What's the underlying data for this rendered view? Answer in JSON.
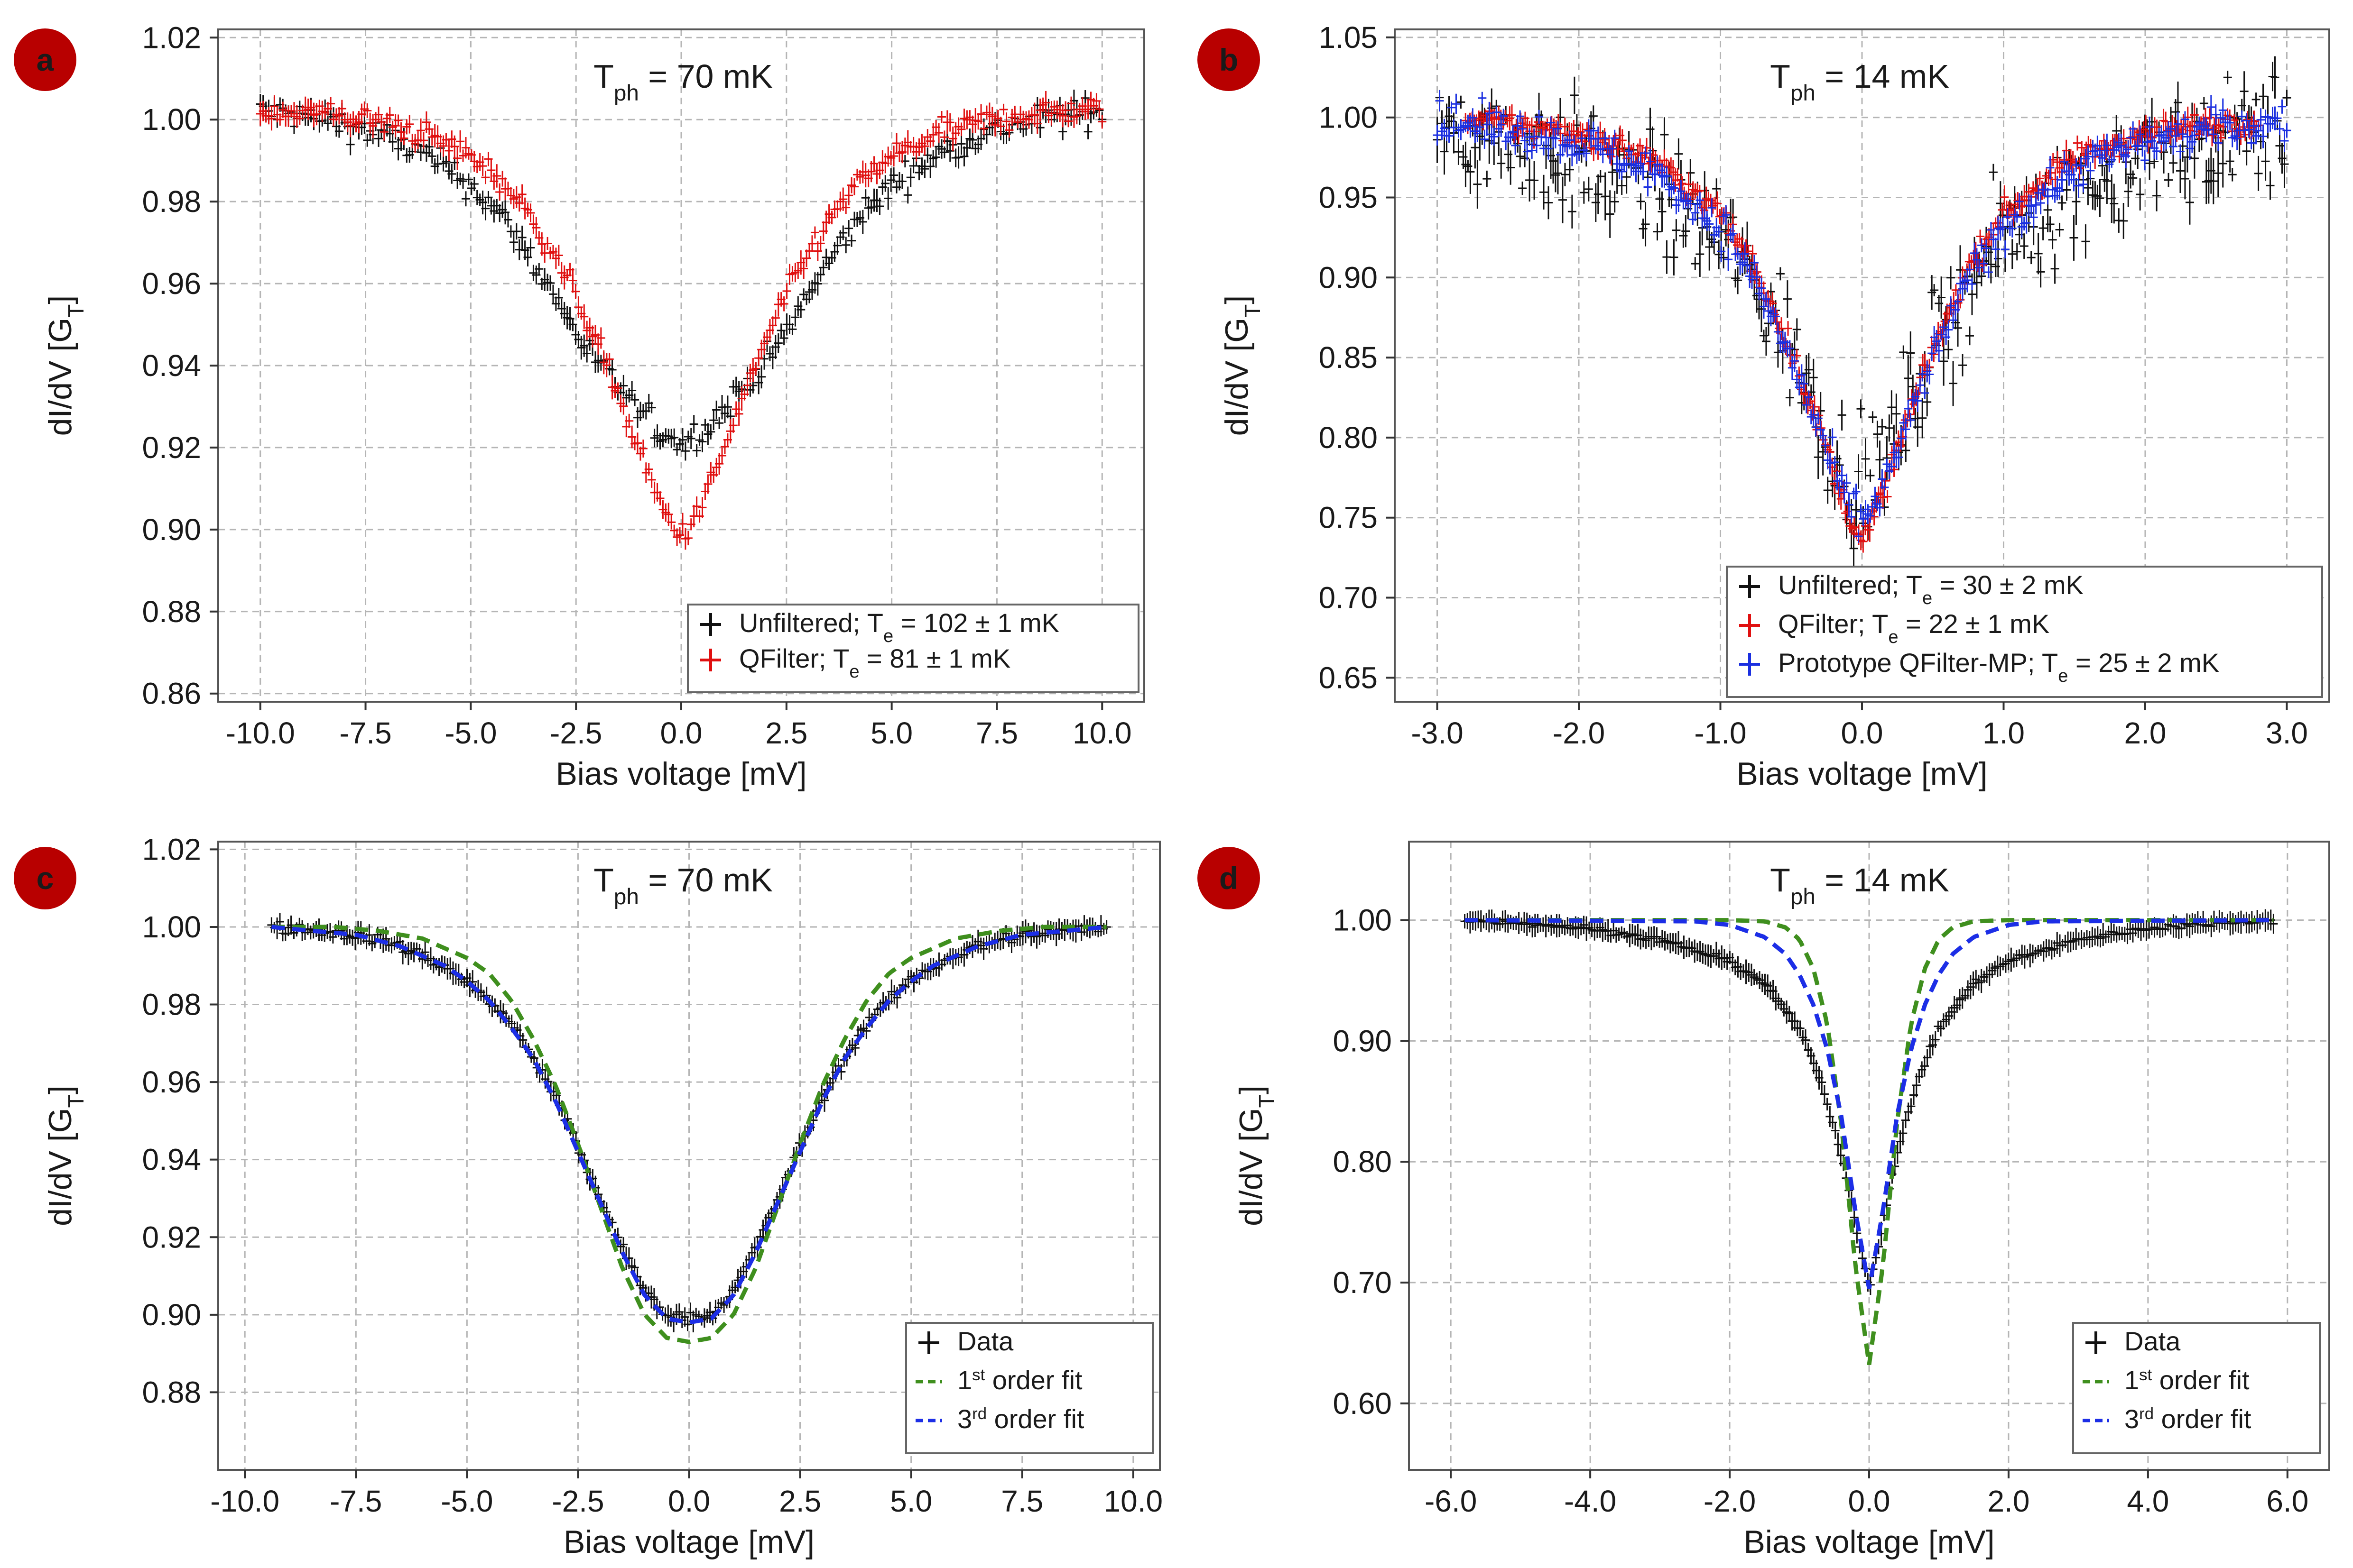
{
  "colors": {
    "unfiltered": "#111111",
    "qfilter": "#e01010",
    "qfilter_mp": "#1a2fe0",
    "fit1": "#3f8f1e",
    "fit3": "#1c2ee6",
    "badge": "#b80000",
    "grid": "#b5b5b5"
  },
  "chart_data": [
    {
      "id": "a",
      "type": "scatter",
      "panel_letter": "a",
      "title_main": "T",
      "title_sub": "ph",
      "title_rest": " = 70 mK",
      "xlabel": "Bias voltage [mV]",
      "ylabel_main": "dI/dV [G",
      "ylabel_sub": "T",
      "ylabel_end": "]",
      "xlim": [
        -11.0,
        11.0
      ],
      "ylim": [
        0.858,
        1.022
      ],
      "xticks": [
        -10.0,
        -7.5,
        -5.0,
        -2.5,
        0.0,
        2.5,
        5.0,
        7.5,
        10.0
      ],
      "xtick_labels": [
        "-10.0",
        "-7.5",
        "-5.0",
        "-2.5",
        "0.0",
        "2.5",
        "5.0",
        "7.5",
        "10.0"
      ],
      "yticks": [
        0.86,
        0.88,
        0.9,
        0.92,
        0.94,
        0.96,
        0.98,
        1.0,
        1.02
      ],
      "ytick_labels": [
        "0.86",
        "0.88",
        "0.90",
        "0.92",
        "0.94",
        "0.96",
        "0.98",
        "1.00",
        "1.02"
      ],
      "grid": true,
      "legend_position": "bottom-right",
      "series": [
        {
          "name": "Unfiltered",
          "legend_main": "Unfiltered; T",
          "legend_sub": "e",
          "legend_rest": " = 102 ± 1 mK",
          "style": "cross",
          "color": "#111111",
          "x": [
            -10.0,
            -9.0,
            -8.0,
            -7.0,
            -6.0,
            -5.0,
            -4.5,
            -4.0,
            -3.5,
            -3.0,
            -2.5,
            -2.0,
            -1.5,
            -1.0,
            -0.5,
            0.0,
            0.5,
            1.0,
            1.5,
            2.0,
            2.5,
            3.0,
            3.5,
            4.0,
            4.5,
            5.0,
            6.0,
            7.0,
            8.0,
            9.0,
            10.0
          ],
          "y": [
            1.002,
            1.001,
            0.999,
            0.996,
            0.991,
            0.984,
            0.979,
            0.973,
            0.965,
            0.957,
            0.948,
            0.941,
            0.935,
            0.929,
            0.924,
            0.921,
            0.924,
            0.929,
            0.935,
            0.941,
            0.948,
            0.957,
            0.965,
            0.973,
            0.979,
            0.984,
            0.991,
            0.996,
            0.999,
            1.001,
            1.002
          ],
          "noise": 0.0035
        },
        {
          "name": "QFilter",
          "legend_main": "QFilter; T",
          "legend_sub": "e",
          "legend_rest": " = 81 ± 1 mK",
          "style": "cross",
          "color": "#e01010",
          "x": [
            -10.0,
            -9.0,
            -8.0,
            -7.0,
            -6.0,
            -5.0,
            -4.5,
            -4.0,
            -3.5,
            -3.0,
            -2.5,
            -2.0,
            -1.5,
            -1.0,
            -0.5,
            0.0,
            0.5,
            1.0,
            1.5,
            2.0,
            2.5,
            3.0,
            3.5,
            4.0,
            4.5,
            5.0,
            6.0,
            7.0,
            8.0,
            9.0,
            10.0
          ],
          "y": [
            1.002,
            1.002,
            1.001,
            0.999,
            0.996,
            0.991,
            0.987,
            0.982,
            0.975,
            0.967,
            0.957,
            0.946,
            0.933,
            0.919,
            0.906,
            0.898,
            0.906,
            0.919,
            0.933,
            0.946,
            0.957,
            0.967,
            0.975,
            0.982,
            0.987,
            0.991,
            0.996,
            0.999,
            1.001,
            1.002,
            1.002
          ],
          "noise": 0.003
        }
      ]
    },
    {
      "id": "b",
      "type": "scatter",
      "panel_letter": "b",
      "title_main": "T",
      "title_sub": "ph",
      "title_rest": " = 14 mK",
      "xlabel": "Bias voltage [mV]",
      "ylabel_main": "dI/dV [G",
      "ylabel_sub": "T",
      "ylabel_end": "]",
      "xlim": [
        -3.3,
        3.3
      ],
      "ylim": [
        0.635,
        1.055
      ],
      "xticks": [
        -3.0,
        -2.0,
        -1.0,
        0.0,
        1.0,
        2.0,
        3.0
      ],
      "xtick_labels": [
        "-3.0",
        "-2.0",
        "-1.0",
        "0.0",
        "1.0",
        "2.0",
        "3.0"
      ],
      "yticks": [
        0.65,
        0.7,
        0.75,
        0.8,
        0.85,
        0.9,
        0.95,
        1.0,
        1.05
      ],
      "ytick_labels": [
        "0.65",
        "0.70",
        "0.75",
        "0.80",
        "0.85",
        "0.90",
        "0.95",
        "1.00",
        "1.05"
      ],
      "grid": true,
      "legend_position": "bottom-right",
      "series": [
        {
          "name": "Unfiltered",
          "legend_main": "Unfiltered; T",
          "legend_sub": "e",
          "legend_rest": " = 30 ± 2 mK",
          "style": "cross",
          "color": "#111111",
          "x": [
            -3.0,
            -2.5,
            -2.0,
            -1.5,
            -1.0,
            -0.75,
            -0.5,
            -0.3,
            -0.15,
            0.0,
            0.15,
            0.3,
            0.5,
            0.75,
            1.0,
            1.5,
            2.0,
            2.5,
            3.0
          ],
          "y": [
            0.995,
            0.985,
            0.972,
            0.955,
            0.925,
            0.895,
            0.855,
            0.815,
            0.785,
            0.765,
            0.785,
            0.815,
            0.855,
            0.895,
            0.925,
            0.955,
            0.972,
            0.985,
            0.995
          ],
          "noise": 0.035
        },
        {
          "name": "QFilter",
          "legend_main": "QFilter; T",
          "legend_sub": "e",
          "legend_rest": " = 22 ± 1 mK",
          "style": "cross",
          "color": "#e01010",
          "x": [
            -2.8,
            -2.5,
            -2.0,
            -1.5,
            -1.0,
            -0.75,
            -0.5,
            -0.3,
            -0.15,
            0.0,
            0.15,
            0.3,
            0.5,
            0.75,
            1.0,
            1.5,
            2.0,
            2.5,
            2.8
          ],
          "y": [
            0.998,
            0.996,
            0.99,
            0.975,
            0.94,
            0.905,
            0.855,
            0.805,
            0.765,
            0.735,
            0.765,
            0.805,
            0.855,
            0.905,
            0.94,
            0.975,
            0.99,
            0.996,
            0.998
          ],
          "noise": 0.008
        },
        {
          "name": "Prototype QFilter-MP",
          "legend_main": "Prototype QFilter-MP; T",
          "legend_sub": "e",
          "legend_rest": " = 25 ± 2 mK",
          "style": "cross",
          "color": "#1a2fe0",
          "x": [
            -3.0,
            -2.5,
            -2.0,
            -1.5,
            -1.0,
            -0.75,
            -0.5,
            -0.3,
            -0.15,
            0.0,
            0.15,
            0.3,
            0.5,
            0.75,
            1.0,
            1.5,
            2.0,
            2.5,
            3.0
          ],
          "y": [
            0.997,
            0.993,
            0.985,
            0.968,
            0.932,
            0.898,
            0.85,
            0.803,
            0.768,
            0.745,
            0.768,
            0.803,
            0.85,
            0.898,
            0.932,
            0.968,
            0.985,
            0.993,
            0.997
          ],
          "noise": 0.012
        }
      ]
    },
    {
      "id": "c",
      "type": "scatter",
      "panel_letter": "c",
      "title_main": "T",
      "title_sub": "ph",
      "title_rest": " = 70 mK",
      "xlabel": "Bias voltage [mV]",
      "ylabel_main": "dI/dV [G",
      "ylabel_sub": "T",
      "ylabel_end": "]",
      "xlim": [
        -10.6,
        10.6
      ],
      "ylim": [
        0.86,
        1.022
      ],
      "xticks": [
        -10.0,
        -7.5,
        -5.0,
        -2.5,
        0.0,
        2.5,
        5.0,
        7.5,
        10.0
      ],
      "xtick_labels": [
        "-10.0",
        "-7.5",
        "-5.0",
        "-2.5",
        "0.0",
        "2.5",
        "5.0",
        "7.5",
        "10.0"
      ],
      "yticks": [
        0.88,
        0.9,
        0.92,
        0.94,
        0.96,
        0.98,
        1.0,
        1.02
      ],
      "ytick_labels": [
        "0.88",
        "0.90",
        "0.92",
        "0.94",
        "0.96",
        "0.98",
        "1.00",
        "1.02"
      ],
      "grid": true,
      "legend_position": "bottom-right",
      "series": [
        {
          "name": "Data",
          "legend_main": "Data",
          "style": "cross",
          "color": "#111111",
          "x": [
            -9.4,
            -8.5,
            -7.5,
            -6.5,
            -5.5,
            -5.0,
            -4.5,
            -4.0,
            -3.5,
            -3.0,
            -2.5,
            -2.0,
            -1.5,
            -1.0,
            -0.5,
            0.0,
            0.5,
            1.0,
            1.5,
            2.0,
            2.5,
            3.0,
            3.5,
            4.0,
            4.5,
            5.0,
            5.5,
            6.5,
            7.5,
            8.5,
            9.4
          ],
          "y": [
            1.0,
            0.999,
            0.998,
            0.995,
            0.99,
            0.986,
            0.981,
            0.975,
            0.966,
            0.956,
            0.943,
            0.93,
            0.917,
            0.906,
            0.9,
            0.899,
            0.9,
            0.906,
            0.917,
            0.93,
            0.943,
            0.956,
            0.966,
            0.975,
            0.981,
            0.986,
            0.99,
            0.995,
            0.998,
            0.999,
            1.0
          ],
          "noise": 0.0015
        },
        {
          "name": "1st order fit",
          "legend_main": "1",
          "legend_sup": "st",
          "legend_rest": " order fit",
          "style": "dashed",
          "color": "#3f8f1e",
          "x": [
            -9.4,
            -8.0,
            -7.0,
            -6.0,
            -5.0,
            -4.5,
            -4.0,
            -3.5,
            -3.0,
            -2.5,
            -2.0,
            -1.5,
            -1.0,
            -0.5,
            0.0,
            0.5,
            1.0,
            1.5,
            2.0,
            2.5,
            3.0,
            3.5,
            4.0,
            4.5,
            5.0,
            6.0,
            7.0,
            8.0,
            9.4
          ],
          "y": [
            1.0,
            1.0,
            0.999,
            0.997,
            0.992,
            0.988,
            0.981,
            0.971,
            0.959,
            0.944,
            0.928,
            0.912,
            0.9,
            0.894,
            0.893,
            0.894,
            0.9,
            0.912,
            0.928,
            0.944,
            0.959,
            0.971,
            0.981,
            0.988,
            0.992,
            0.997,
            0.999,
            1.0,
            1.0
          ]
        },
        {
          "name": "3rd order fit",
          "legend_main": "3",
          "legend_sup": "rd",
          "legend_rest": " order fit",
          "style": "dashed",
          "color": "#1c2ee6",
          "x": [
            -9.4,
            -8.5,
            -7.5,
            -6.5,
            -5.5,
            -5.0,
            -4.5,
            -4.0,
            -3.5,
            -3.0,
            -2.5,
            -2.0,
            -1.5,
            -1.0,
            -0.5,
            0.0,
            0.5,
            1.0,
            1.5,
            2.0,
            2.5,
            3.0,
            3.5,
            4.0,
            4.5,
            5.0,
            5.5,
            6.5,
            7.5,
            8.5,
            9.4
          ],
          "y": [
            1.0,
            0.999,
            0.998,
            0.995,
            0.99,
            0.986,
            0.981,
            0.974,
            0.966,
            0.955,
            0.942,
            0.929,
            0.916,
            0.905,
            0.899,
            0.898,
            0.899,
            0.905,
            0.916,
            0.929,
            0.942,
            0.955,
            0.966,
            0.974,
            0.981,
            0.986,
            0.99,
            0.995,
            0.998,
            0.999,
            1.0
          ]
        }
      ]
    },
    {
      "id": "d",
      "type": "scatter",
      "panel_letter": "d",
      "title_main": "T",
      "title_sub": "ph",
      "title_rest": " = 14 mK",
      "xlabel": "Bias voltage [mV]",
      "ylabel_main": "dI/dV [G",
      "ylabel_sub": "T",
      "ylabel_end": "]",
      "xlim": [
        -6.6,
        6.6
      ],
      "ylim": [
        0.545,
        1.065
      ],
      "xticks": [
        -6.0,
        -4.0,
        -2.0,
        0.0,
        2.0,
        4.0,
        6.0
      ],
      "xtick_labels": [
        "-6.0",
        "-4.0",
        "-2.0",
        "0.0",
        "2.0",
        "4.0",
        "6.0"
      ],
      "yticks": [
        0.6,
        0.7,
        0.8,
        0.9,
        1.0
      ],
      "ytick_labels": [
        "0.60",
        "0.70",
        "0.80",
        "0.90",
        "1.00"
      ],
      "grid": true,
      "legend_position": "bottom-right",
      "series": [
        {
          "name": "Data",
          "legend_main": "Data",
          "style": "cross",
          "color": "#111111",
          "x": [
            -5.8,
            -5.0,
            -4.0,
            -3.0,
            -2.0,
            -1.5,
            -1.0,
            -0.7,
            -0.5,
            -0.3,
            -0.15,
            0.0,
            0.15,
            0.3,
            0.5,
            0.7,
            1.0,
            1.5,
            2.0,
            3.0,
            4.0,
            5.0,
            5.8
          ],
          "y": [
            1.0,
            0.998,
            0.993,
            0.984,
            0.966,
            0.948,
            0.91,
            0.868,
            0.828,
            0.781,
            0.735,
            0.695,
            0.735,
            0.781,
            0.828,
            0.868,
            0.91,
            0.948,
            0.966,
            0.984,
            0.993,
            0.998,
            1.0
          ],
          "noise": 0.0025
        },
        {
          "name": "1st order fit",
          "legend_main": "1",
          "legend_sup": "st",
          "legend_rest": " order fit",
          "style": "dashed",
          "color": "#3f8f1e",
          "x": [
            -5.8,
            -2.0,
            -1.5,
            -1.2,
            -1.0,
            -0.8,
            -0.6,
            -0.4,
            -0.2,
            0.0,
            0.2,
            0.4,
            0.6,
            0.8,
            1.0,
            1.2,
            1.5,
            2.0,
            5.8
          ],
          "y": [
            1.0,
            1.0,
            0.999,
            0.994,
            0.984,
            0.96,
            0.914,
            0.832,
            0.715,
            0.632,
            0.715,
            0.832,
            0.914,
            0.96,
            0.984,
            0.994,
            0.999,
            1.0,
            1.0
          ]
        },
        {
          "name": "3rd order fit",
          "legend_main": "3",
          "legend_sup": "rd",
          "legend_rest": " order fit",
          "style": "dashed",
          "color": "#1c2ee6",
          "x": [
            -5.8,
            -2.5,
            -2.0,
            -1.5,
            -1.2,
            -1.0,
            -0.8,
            -0.6,
            -0.4,
            -0.2,
            0.0,
            0.2,
            0.4,
            0.6,
            0.8,
            1.0,
            1.2,
            1.5,
            2.0,
            2.5,
            5.8
          ],
          "y": [
            1.0,
            0.999,
            0.996,
            0.986,
            0.972,
            0.955,
            0.93,
            0.893,
            0.838,
            0.76,
            0.695,
            0.76,
            0.838,
            0.893,
            0.93,
            0.955,
            0.972,
            0.986,
            0.996,
            0.999,
            1.0
          ]
        }
      ]
    }
  ]
}
